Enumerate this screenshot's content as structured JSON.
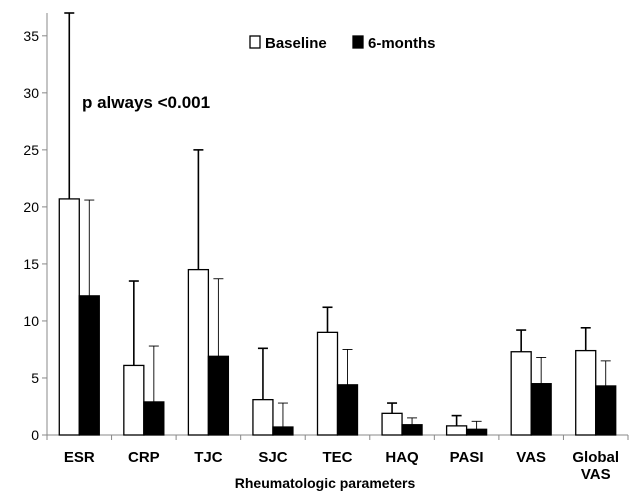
{
  "chart_data": {
    "type": "bar",
    "xlabel": "Rheumatologic parameters",
    "ylabel": "",
    "ylim": [
      0,
      37
    ],
    "yticks": [
      0,
      5,
      10,
      15,
      20,
      25,
      30,
      35
    ],
    "annotation": "p always <0.001",
    "legend_position": "top-center",
    "categories": [
      [
        "ESR"
      ],
      [
        "CRP"
      ],
      [
        "TJC"
      ],
      [
        "SJC"
      ],
      [
        "TEC"
      ],
      [
        "HAQ"
      ],
      [
        "PASI"
      ],
      [
        "VAS"
      ],
      [
        "Global",
        "VAS"
      ]
    ],
    "series": [
      {
        "name": "Baseline",
        "fill": "#ffffff",
        "values": [
          20.7,
          6.1,
          14.5,
          3.1,
          9.0,
          1.9,
          0.8,
          7.3,
          7.4
        ],
        "error_upper": [
          37.0,
          13.5,
          25.0,
          7.6,
          11.2,
          2.8,
          1.7,
          9.2,
          9.4
        ]
      },
      {
        "name": "6-months",
        "fill": "#000000",
        "values": [
          12.2,
          2.9,
          6.9,
          0.7,
          4.4,
          0.9,
          0.5,
          4.5,
          4.3
        ],
        "error_upper": [
          20.6,
          7.8,
          13.7,
          2.8,
          7.5,
          1.5,
          1.2,
          6.8,
          6.5
        ]
      }
    ]
  }
}
